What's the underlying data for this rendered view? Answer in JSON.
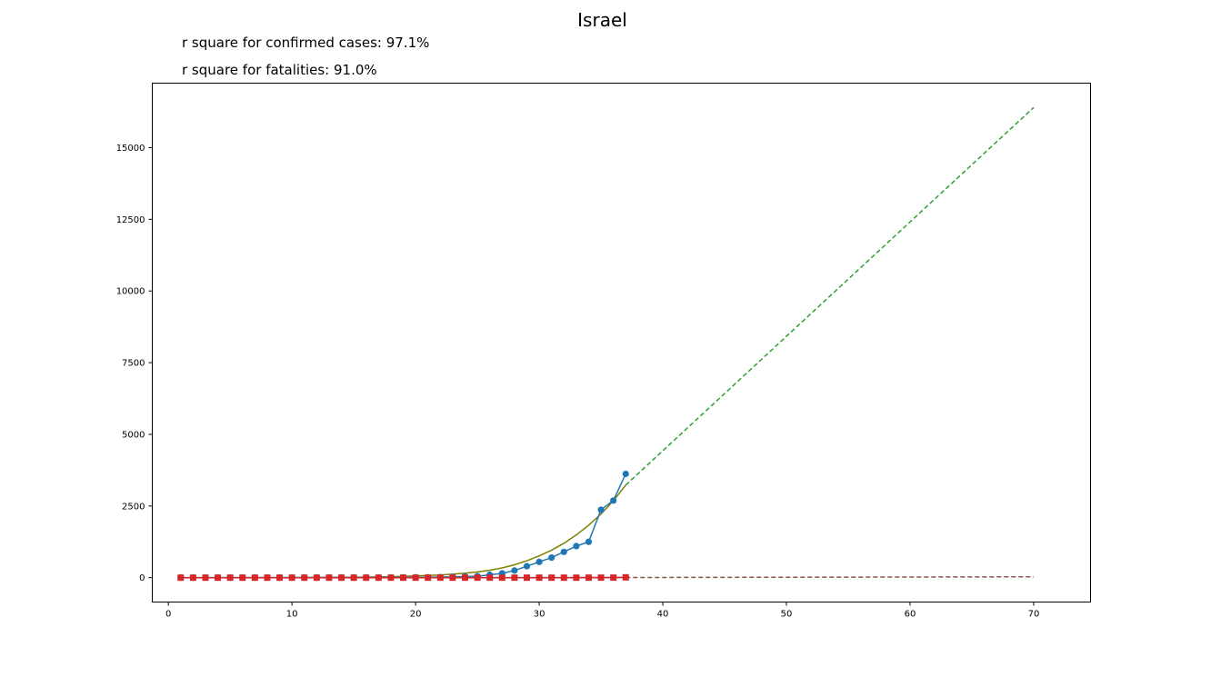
{
  "chart_data": {
    "type": "line",
    "title": "Israel",
    "annotations": [
      "r square for confirmed cases: 97.1%",
      "r square for fatalities: 91.0%"
    ],
    "xlabel": "",
    "ylabel": "",
    "xlim": [
      -1.3,
      74.6
    ],
    "ylim": [
      -850,
      17250
    ],
    "xticks": [
      0,
      10,
      20,
      30,
      40,
      50,
      60,
      70
    ],
    "yticks": [
      0,
      2500,
      5000,
      7500,
      10000,
      12500,
      15000
    ],
    "grid": false,
    "series": [
      {
        "style": "line-markers-circle",
        "color": "#1f77b4",
        "x": [
          1,
          2,
          3,
          4,
          5,
          6,
          7,
          8,
          9,
          10,
          11,
          12,
          13,
          14,
          15,
          16,
          17,
          18,
          19,
          20,
          21,
          22,
          23,
          24,
          25,
          26,
          27,
          28,
          29,
          30,
          31,
          32,
          33,
          34,
          35,
          36,
          37
        ],
        "y": [
          1,
          1,
          1,
          1,
          1,
          1,
          1,
          1,
          1,
          1,
          1,
          1,
          1,
          1,
          1,
          1,
          2,
          4,
          7,
          10,
          12,
          20,
          30,
          40,
          50,
          100,
          150,
          250,
          400,
          550,
          700,
          900,
          1100,
          1250,
          2370,
          2690,
          3620
        ]
      },
      {
        "style": "line-markers-square",
        "color": "#d62728",
        "x": [
          1,
          2,
          3,
          4,
          5,
          6,
          7,
          8,
          9,
          10,
          11,
          12,
          13,
          14,
          15,
          16,
          17,
          18,
          19,
          20,
          21,
          22,
          23,
          24,
          25,
          26,
          27,
          28,
          29,
          30,
          31,
          32,
          33,
          34,
          35,
          36,
          37
        ],
        "y": [
          0,
          0,
          0,
          0,
          0,
          0,
          0,
          0,
          0,
          0,
          0,
          0,
          0,
          0,
          0,
          0,
          0,
          0,
          0,
          0,
          0,
          0,
          0,
          0,
          0,
          0,
          0,
          0,
          0,
          0,
          0,
          0,
          0,
          1,
          1,
          2,
          12
        ]
      },
      {
        "style": "solid",
        "color": "#808000",
        "x": [
          1,
          5,
          10,
          15,
          18,
          20,
          22,
          24,
          25,
          26,
          27,
          28,
          29,
          30,
          31,
          32,
          33,
          34,
          35,
          36,
          37
        ],
        "y": [
          0,
          0,
          2,
          15,
          35,
          60,
          95,
          155,
          200,
          260,
          340,
          450,
          590,
          760,
          960,
          1200,
          1490,
          1830,
          2220,
          2680,
          3230
        ]
      },
      {
        "style": "dashed",
        "color": "#2ca02c",
        "x": [
          37,
          70
        ],
        "y": [
          3230,
          16400
        ]
      },
      {
        "style": "solid",
        "color": "#9467bd",
        "x": [
          1,
          37
        ],
        "y": [
          0,
          5
        ]
      },
      {
        "style": "dashed",
        "color": "#8c564b",
        "x": [
          37,
          70
        ],
        "y": [
          5,
          30
        ]
      }
    ]
  }
}
